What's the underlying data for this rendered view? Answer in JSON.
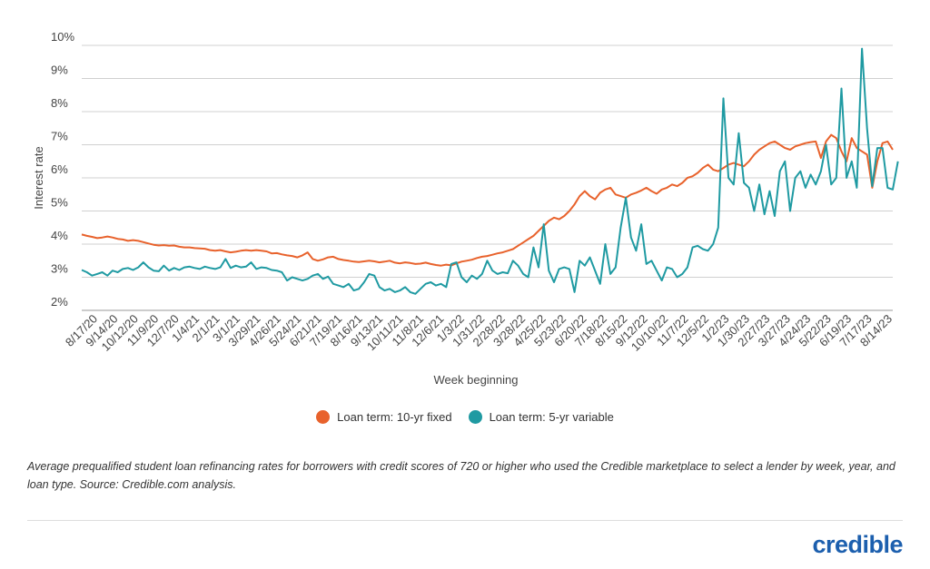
{
  "chart_data": {
    "type": "line",
    "xlabel": "Week beginning",
    "ylabel": "Interest rate",
    "ylim": [
      2,
      10
    ],
    "yticks": [
      "2%",
      "3%",
      "4%",
      "5%",
      "6%",
      "7%",
      "8%",
      "9%",
      "10%"
    ],
    "x_tick_labels": [
      "8/17/20",
      "9/14/20",
      "10/12/20",
      "11/9/20",
      "12/7/20",
      "1/4/21",
      "2/1/21",
      "3/1/21",
      "3/29/21",
      "4/26/21",
      "5/24/21",
      "6/21/21",
      "7/19/21",
      "8/16/21",
      "9/13/21",
      "10/11/21",
      "11/8/21",
      "12/6/21",
      "1/3/22",
      "1/31/22",
      "2/28/22",
      "3/28/22",
      "4/25/22",
      "5/23/22",
      "6/20/22",
      "7/18/22",
      "8/15/22",
      "9/12/22",
      "10/10/22",
      "11/7/22",
      "12/5/22",
      "1/2/23",
      "1/30/23",
      "2/27/23",
      "3/27/23",
      "4/24/23",
      "5/22/23",
      "6/19/23",
      "7/17/23",
      "8/14/23"
    ],
    "grid": true,
    "legend_position": "bottom",
    "series": [
      {
        "name": "Loan term: 10-yr fixed",
        "color": "#e8622c",
        "values": [
          4.29,
          4.25,
          4.22,
          4.18,
          4.2,
          4.23,
          4.2,
          4.16,
          4.14,
          4.1,
          4.12,
          4.1,
          4.06,
          4.02,
          3.98,
          3.96,
          3.97,
          3.95,
          3.96,
          3.92,
          3.9,
          3.9,
          3.88,
          3.87,
          3.86,
          3.82,
          3.8,
          3.82,
          3.78,
          3.75,
          3.77,
          3.8,
          3.82,
          3.8,
          3.82,
          3.8,
          3.78,
          3.72,
          3.73,
          3.69,
          3.66,
          3.64,
          3.6,
          3.66,
          3.75,
          3.55,
          3.5,
          3.54,
          3.6,
          3.62,
          3.55,
          3.52,
          3.5,
          3.47,
          3.46,
          3.48,
          3.5,
          3.48,
          3.45,
          3.47,
          3.5,
          3.44,
          3.42,
          3.45,
          3.43,
          3.4,
          3.41,
          3.44,
          3.4,
          3.37,
          3.35,
          3.38,
          3.36,
          3.42,
          3.47,
          3.5,
          3.53,
          3.58,
          3.62,
          3.64,
          3.68,
          3.72,
          3.75,
          3.8,
          3.85,
          3.95,
          4.05,
          4.15,
          4.25,
          4.4,
          4.55,
          4.7,
          4.8,
          4.75,
          4.85,
          5.0,
          5.2,
          5.45,
          5.6,
          5.45,
          5.35,
          5.55,
          5.65,
          5.7,
          5.5,
          5.45,
          5.4,
          5.5,
          5.55,
          5.62,
          5.7,
          5.6,
          5.52,
          5.65,
          5.7,
          5.8,
          5.75,
          5.85,
          6.0,
          6.05,
          6.15,
          6.3,
          6.4,
          6.25,
          6.2,
          6.3,
          6.4,
          6.45,
          6.4,
          6.35,
          6.5,
          6.7,
          6.85,
          6.95,
          7.05,
          7.1,
          7.0,
          6.9,
          6.85,
          6.95,
          7.0,
          7.05,
          7.08,
          7.1,
          6.6,
          7.1,
          7.3,
          7.2,
          6.8,
          6.5,
          7.2,
          6.9,
          6.8,
          6.7,
          5.7,
          6.5,
          7.05,
          7.1,
          6.85
        ]
      },
      {
        "name": "Loan term: 5-yr variable",
        "color": "#1f9aa2",
        "values": [
          3.22,
          3.15,
          3.05,
          3.1,
          3.15,
          3.05,
          3.2,
          3.15,
          3.25,
          3.28,
          3.22,
          3.3,
          3.45,
          3.3,
          3.2,
          3.18,
          3.35,
          3.2,
          3.28,
          3.22,
          3.3,
          3.32,
          3.28,
          3.25,
          3.32,
          3.28,
          3.25,
          3.3,
          3.55,
          3.28,
          3.35,
          3.3,
          3.32,
          3.45,
          3.25,
          3.3,
          3.28,
          3.22,
          3.2,
          3.15,
          2.9,
          3.0,
          2.95,
          2.9,
          2.95,
          3.05,
          3.1,
          2.95,
          3.02,
          2.8,
          2.75,
          2.7,
          2.8,
          2.6,
          2.65,
          2.85,
          3.1,
          3.05,
          2.7,
          2.6,
          2.65,
          2.55,
          2.6,
          2.7,
          2.55,
          2.5,
          2.65,
          2.8,
          2.85,
          2.75,
          2.8,
          2.7,
          3.4,
          3.45,
          3.0,
          2.85,
          3.05,
          2.95,
          3.1,
          3.5,
          3.2,
          3.1,
          3.15,
          3.12,
          3.5,
          3.35,
          3.1,
          3.0,
          3.9,
          3.3,
          4.6,
          3.2,
          2.85,
          3.25,
          3.3,
          3.25,
          2.55,
          3.5,
          3.35,
          3.6,
          3.2,
          2.8,
          4.0,
          3.1,
          3.3,
          4.5,
          5.4,
          4.2,
          3.8,
          4.6,
          3.4,
          3.5,
          3.2,
          2.9,
          3.3,
          3.25,
          3.0,
          3.1,
          3.3,
          3.9,
          3.95,
          3.85,
          3.8,
          4.0,
          4.5,
          8.4,
          6.0,
          5.8,
          7.35,
          5.85,
          5.7,
          5.0,
          5.8,
          4.9,
          5.6,
          4.85,
          6.2,
          6.5,
          5.0,
          6.0,
          6.2,
          5.7,
          6.1,
          5.8,
          6.2,
          7.0,
          5.8,
          6.0,
          8.7,
          6.0,
          6.5,
          5.7,
          9.9,
          7.5,
          5.75,
          6.9,
          6.9,
          5.7,
          5.65,
          6.5
        ]
      }
    ]
  },
  "caption": "Average prequalified student loan refinancing rates for borrowers with credit scores of 720 or higher who used the Credible marketplace to select a lender by week, year, and loan type. Source: Credible.com analysis.",
  "logo": {
    "text": "credible",
    "color": "#1c5fae"
  },
  "colors": {
    "grid": "#d0d0d0",
    "axis": "#999999"
  }
}
